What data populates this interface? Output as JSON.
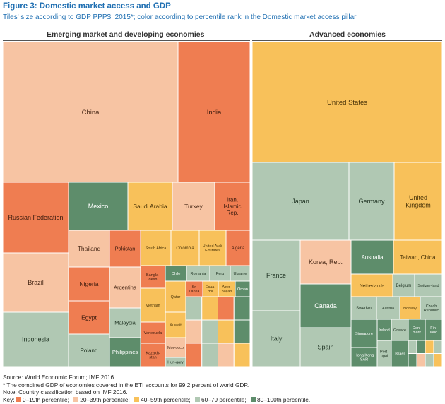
{
  "title": "Figure 3: Domestic market access and GDP",
  "subtitle": "Tiles' size according to GDP PPP$, 2015*; color according to percentile rank in the Domestic market access pillar",
  "groups": {
    "emerging": "Emerging market and developing economies",
    "advanced": "Advanced economies"
  },
  "colors": {
    "p0_19": "#ef7d51",
    "p20_39": "#f7c4a3",
    "p40_59": "#f8c15a",
    "p60_79": "#b0c8b3",
    "p80_100": "#5e8d6b",
    "background": "#ffffff",
    "title_blue": "#1f6fb2"
  },
  "chart_data": {
    "type": "treemap",
    "size_measure": "GDP PPP$, 2015",
    "color_measure": "Percentile rank in the Domestic market access pillar",
    "groups": [
      {
        "name": "Emerging market and developing economies",
        "tiles": [
          {
            "label": "China",
            "class": "20-39"
          },
          {
            "label": "India",
            "class": "0-19"
          },
          {
            "label": "Russian Federation",
            "class": "0-19"
          },
          {
            "label": "Brazil",
            "class": "20-39"
          },
          {
            "label": "Indonesia",
            "class": "60-79"
          },
          {
            "label": "Mexico",
            "class": "80-100"
          },
          {
            "label": "Saudi Arabia",
            "class": "40-59"
          },
          {
            "label": "Turkey",
            "class": "20-39"
          },
          {
            "label": "Iran, Islamic Rep.",
            "class": "0-19"
          },
          {
            "label": "Thailand",
            "class": "20-39"
          },
          {
            "label": "Pakistan",
            "class": "0-19"
          },
          {
            "label": "Nigeria",
            "class": "0-19"
          },
          {
            "label": "Argentina",
            "class": "20-39"
          },
          {
            "label": "Egypt",
            "class": "0-19"
          },
          {
            "label": "Malaysia",
            "class": "60-79"
          },
          {
            "label": "Poland",
            "class": "60-79"
          },
          {
            "label": "Philippines",
            "class": "80-100"
          },
          {
            "label": "South Africa",
            "class": "40-59"
          },
          {
            "label": "Colombia",
            "class": "40-59"
          },
          {
            "label": "United Arab Emirates",
            "class": "40-59"
          },
          {
            "label": "Algeria",
            "class": "0-19"
          },
          {
            "label": "Bangla-desh",
            "class": "0-19"
          },
          {
            "label": "Chile",
            "class": "80-100"
          },
          {
            "label": "Romania",
            "class": "60-79"
          },
          {
            "label": "Peru",
            "class": "60-79"
          },
          {
            "label": "Ukraine",
            "class": "60-79"
          },
          {
            "label": "Vietnam",
            "class": "40-59"
          },
          {
            "label": "Qatar",
            "class": "40-59"
          },
          {
            "label": "Sri Lanka",
            "class": "0-19"
          },
          {
            "label": "Ecua-dor",
            "class": "40-59"
          },
          {
            "label": "Azer-baijan",
            "class": "40-59"
          },
          {
            "label": "Oman",
            "class": "80-100"
          },
          {
            "label": "Kuwait",
            "class": "40-59"
          },
          {
            "label": "Venezuela",
            "class": "0-19"
          },
          {
            "label": "Mor-occo",
            "class": "20-39"
          },
          {
            "label": "Kazakh-stan",
            "class": "0-19"
          },
          {
            "label": "Hun-gary",
            "class": "60-79"
          }
        ]
      },
      {
        "name": "Advanced economies",
        "tiles": [
          {
            "label": "United States",
            "class": "40-59"
          },
          {
            "label": "Japan",
            "class": "60-79"
          },
          {
            "label": "Germany",
            "class": "60-79"
          },
          {
            "label": "United Kingdom",
            "class": "40-59"
          },
          {
            "label": "France",
            "class": "60-79"
          },
          {
            "label": "Italy",
            "class": "60-79"
          },
          {
            "label": "Korea, Rep.",
            "class": "20-39"
          },
          {
            "label": "Canada",
            "class": "80-100"
          },
          {
            "label": "Spain",
            "class": "60-79"
          },
          {
            "label": "Australia",
            "class": "80-100"
          },
          {
            "label": "Taiwan, China",
            "class": "40-59"
          },
          {
            "label": "Netherlands",
            "class": "40-59"
          },
          {
            "label": "Belgium",
            "class": "60-79"
          },
          {
            "label": "Switzer-land",
            "class": "60-79"
          },
          {
            "label": "Sweden",
            "class": "60-79"
          },
          {
            "label": "Austria",
            "class": "60-79"
          },
          {
            "label": "Norway",
            "class": "40-59"
          },
          {
            "label": "Czech Republic",
            "class": "60-79"
          },
          {
            "label": "Singapore",
            "class": "80-100"
          },
          {
            "label": "Ireland",
            "class": "80-100"
          },
          {
            "label": "Greece",
            "class": "60-79"
          },
          {
            "label": "Den-mark",
            "class": "80-100"
          },
          {
            "label": "Fin-land",
            "class": "80-100"
          },
          {
            "label": "Hong Kong SAR",
            "class": "80-100"
          },
          {
            "label": "Port-ugal",
            "class": "60-79"
          },
          {
            "label": "Israel",
            "class": "80-100"
          }
        ]
      }
    ],
    "legend": [
      {
        "label": "0–19th percentile",
        "class": "0-19"
      },
      {
        "label": "20–39th percentile",
        "class": "20-39"
      },
      {
        "label": "40–59th percentile",
        "class": "40-59"
      },
      {
        "label": "60–79 percentile",
        "class": "60-79"
      },
      {
        "label": "80–100th percentile",
        "class": "80-100"
      }
    ]
  },
  "notes": {
    "source": "Source: World Economic Forum; IMF 2016.",
    "footnote": "* The combined GDP of economies covered in the ETI accounts for 99.2 percent of world GDP.",
    "classification": "Note: Country classification based on IMF 2016.",
    "key_label": "Key:"
  }
}
